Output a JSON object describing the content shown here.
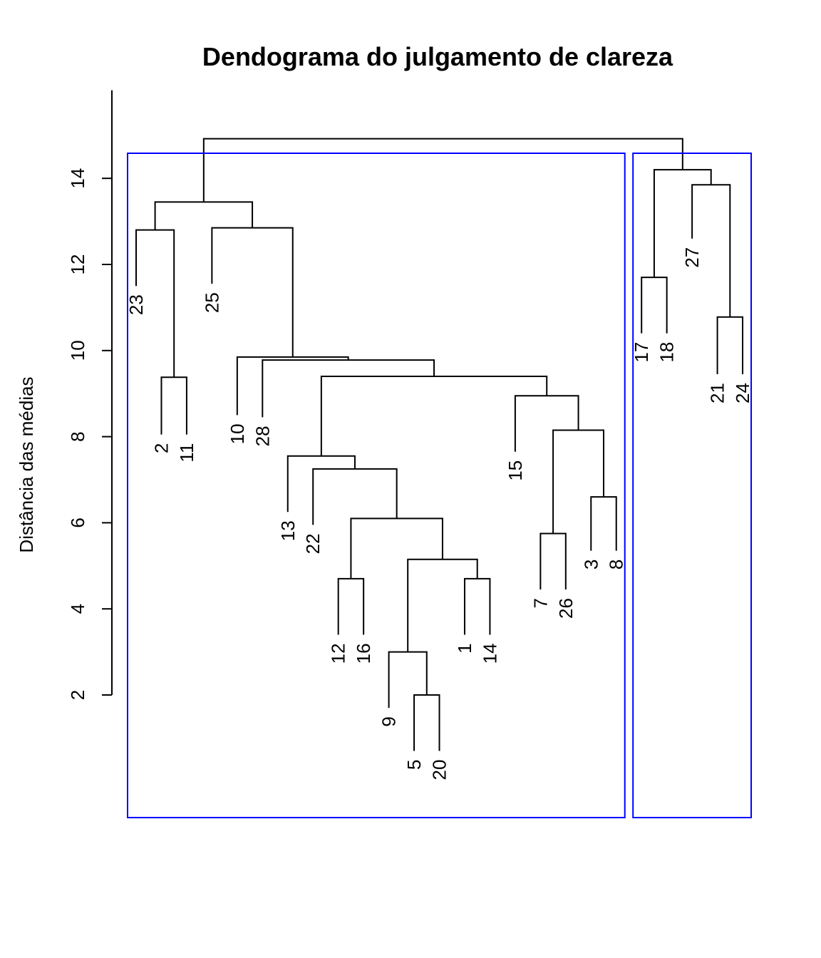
{
  "chart_data": {
    "type": "dendrogram",
    "title": "Dendograma do julgamento de clareza",
    "ylabel": "Distância das médias",
    "xlabel": "",
    "yticks": [
      2,
      4,
      6,
      8,
      10,
      12,
      14
    ],
    "ylim": [
      2,
      15.5
    ],
    "grid": false,
    "legend": "none",
    "line_color": "#000000",
    "cluster_box_color": "#0000ff",
    "leaf_order": [
      "23",
      "2",
      "11",
      "25",
      "10",
      "28",
      "13",
      "22",
      "12",
      "16",
      "9",
      "5",
      "20",
      "1",
      "14",
      "15",
      "7",
      "26",
      "3",
      "8",
      "17",
      "18",
      "27",
      "21",
      "24"
    ],
    "merges": [
      {
        "left": "5",
        "right": "20",
        "height": 2.0,
        "id": "m_5_20"
      },
      {
        "left": "9",
        "right": "m_5_20",
        "height": 3.0,
        "id": "m_9"
      },
      {
        "left": "1",
        "right": "14",
        "height": 4.7,
        "id": "m_1_14"
      },
      {
        "left": "12",
        "right": "16",
        "height": 4.7,
        "id": "m_12_16"
      },
      {
        "left": "m_9",
        "right": "m_1_14",
        "height": 5.15,
        "id": "m_9_1"
      },
      {
        "left": "m_12_16",
        "right": "m_9_1",
        "height": 6.1,
        "id": "m_12_9"
      },
      {
        "left": "7",
        "right": "26",
        "height": 5.75,
        "id": "m_7_26"
      },
      {
        "left": "3",
        "right": "8",
        "height": 6.6,
        "id": "m_3_8"
      },
      {
        "left": "m_7_26",
        "right": "m_3_8",
        "height": 8.15,
        "id": "m_7_3"
      },
      {
        "left": "15",
        "right": "m_7_3",
        "height": 8.95,
        "id": "m_15"
      },
      {
        "left": "22",
        "right": "m_12_9",
        "height": 7.25,
        "id": "m_22"
      },
      {
        "left": "13",
        "right": "m_22",
        "height": 7.55,
        "id": "m_13"
      },
      {
        "left": "m_13",
        "right": "m_15",
        "height": 9.4,
        "id": "m_13_15"
      },
      {
        "left": "28",
        "right": "m_13_15",
        "height": 9.78,
        "id": "m_28"
      },
      {
        "left": "10",
        "right": "m_28",
        "height": 9.85,
        "id": "m_10"
      },
      {
        "left": "25",
        "right": "m_10",
        "height": 12.85,
        "id": "m_25"
      },
      {
        "left": "2",
        "right": "11",
        "height": 9.38,
        "id": "m_2_11"
      },
      {
        "left": "23",
        "right": "m_2_11",
        "height": 12.8,
        "id": "m_23"
      },
      {
        "left": "m_23",
        "right": "m_25",
        "height": 13.45,
        "id": "m_A"
      },
      {
        "left": "17",
        "right": "18",
        "height": 11.7,
        "id": "m_17_18"
      },
      {
        "left": "21",
        "right": "24",
        "height": 10.78,
        "id": "m_21_24"
      },
      {
        "left": "27",
        "right": "m_21_24",
        "height": 13.85,
        "id": "m_27"
      },
      {
        "left": "m_17_18",
        "right": "m_27",
        "height": 14.2,
        "id": "m_B"
      },
      {
        "left": "m_A",
        "right": "m_B",
        "height": 14.92,
        "id": "m_root"
      }
    ],
    "leaf_heights": {
      "23": 11.5,
      "2": 8.05,
      "11": 8.05,
      "25": 11.55,
      "10": 8.5,
      "28": 8.45,
      "13": 6.25,
      "22": 5.95,
      "12": 3.4,
      "16": 3.4,
      "9": 1.7,
      "5": 0.7,
      "20": 0.7,
      "1": 3.4,
      "14": 3.4,
      "15": 7.65,
      "7": 4.45,
      "26": 4.45,
      "3": 5.35,
      "8": 5.35,
      "17": 10.4,
      "18": 10.4,
      "27": 12.6,
      "21": 9.45,
      "24": 9.45
    },
    "clusters": [
      {
        "first_leaf": "23",
        "last_leaf": "8"
      },
      {
        "first_leaf": "17",
        "last_leaf": "24"
      }
    ]
  }
}
